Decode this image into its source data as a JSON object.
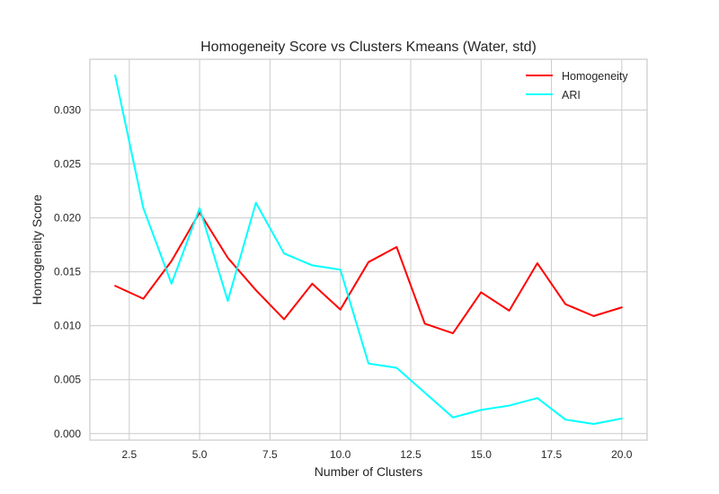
{
  "chart_data": {
    "type": "line",
    "title": "Homogeneity Score vs Clusters Kmeans (Water, std)",
    "xlabel": "Number of Clusters",
    "ylabel": "Homogeneity Score",
    "xlim": [
      1.1,
      20.9
    ],
    "ylim": [
      -0.0006,
      0.0347
    ],
    "xticks": [
      2.5,
      5.0,
      7.5,
      10.0,
      12.5,
      15.0,
      17.5,
      20.0
    ],
    "xtick_labels": [
      "2.5",
      "5.0",
      "7.5",
      "10.0",
      "12.5",
      "15.0",
      "17.5",
      "20.0"
    ],
    "yticks": [
      0.0,
      0.005,
      0.01,
      0.015,
      0.02,
      0.025,
      0.03
    ],
    "ytick_labels": [
      "0.000",
      "0.005",
      "0.010",
      "0.015",
      "0.020",
      "0.025",
      "0.030"
    ],
    "grid": true,
    "legend_position": "top-right",
    "x": [
      2,
      3,
      4,
      5,
      6,
      7,
      8,
      9,
      10,
      11,
      12,
      13,
      14,
      15,
      16,
      17,
      18,
      19,
      20
    ],
    "series": [
      {
        "name": "Homogeneity",
        "color": "#ff0000",
        "values": [
          0.0137,
          0.0125,
          0.016,
          0.0205,
          0.0163,
          0.0133,
          0.0106,
          0.0139,
          0.0115,
          0.0159,
          0.0173,
          0.0102,
          0.0093,
          0.0131,
          0.0114,
          0.0158,
          0.012,
          0.0109,
          0.0117
        ]
      },
      {
        "name": "ARI",
        "color": "#00ffff",
        "values": [
          0.0332,
          0.0209,
          0.0139,
          0.0209,
          0.0123,
          0.0214,
          0.0167,
          0.0156,
          0.0152,
          0.0065,
          0.0061,
          0.0038,
          0.0015,
          0.0022,
          0.0026,
          0.0033,
          0.0013,
          0.0009,
          0.0014
        ]
      }
    ]
  }
}
